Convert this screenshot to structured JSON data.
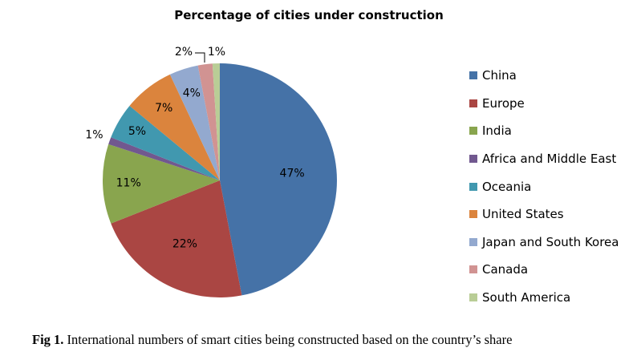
{
  "chart_data": {
    "type": "pie",
    "title": "Percentage of cities under construction",
    "categories": [
      "China",
      "Europe",
      "India",
      "Africa and Middle East",
      "Oceania",
      "United States",
      "Japan and South Korea",
      "Canada",
      "South America"
    ],
    "values": [
      47,
      22,
      11,
      1,
      5,
      7,
      4,
      2,
      1
    ],
    "labels": [
      "47%",
      "22%",
      "11%",
      "1%",
      "5%",
      "7%",
      "4%",
      "2%",
      "1%"
    ],
    "colors": [
      "#4572A7",
      "#AA4643",
      "#89A54E",
      "#71588F",
      "#4198AF",
      "#DB843D",
      "#93A9CF",
      "#D19392",
      "#B9CD96"
    ],
    "legend_position": "right"
  },
  "caption": {
    "prefix": "Fig 1.",
    "text": " International numbers of smart cities being constructed based on the country’s share"
  }
}
